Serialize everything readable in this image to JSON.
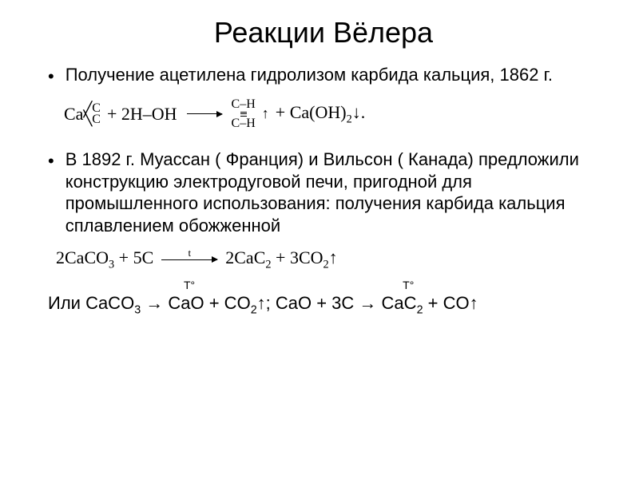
{
  "title": "Реакции Вёлера",
  "bullet1": "Получение ацетилена гидролизом карбида кальция, 1862 г.",
  "eq1": {
    "ca": "Ca",
    "C": "C",
    "plus": " + 2H–OH",
    "CH": "C–H",
    "up": "↑",
    "tail": " + Ca(OH)",
    "tail_sub": "2",
    "down": "↓."
  },
  "bullet2": "В 1892 г. Муассан ( Франция) и Вильсон ( Канада) предложили конструкцию электродуговой печи, пригодной для промышленного использования: получения карбида кальция сплавлением обожженной",
  "eq2": {
    "lhs_a": "2CaCO",
    "lhs_a_sub": "3",
    "lhs_b": " + 5C",
    "over": "t",
    "rhs_a": "2CaC",
    "rhs_a_sub": "2",
    "rhs_b": " + 3CO",
    "rhs_b_sub": "2",
    "up": "↑"
  },
  "t_label": "Т°",
  "final": {
    "prefix": "Или ",
    "p1a": "CaCO",
    "p1a_sub": "3",
    "arrow": " → ",
    "p1b": "CaO + CO",
    "p1b_sub": "2",
    "up": "↑",
    "sep": ";   ",
    "p2a": "CaO + 3C",
    "p2b": "CaC",
    "p2b_sub": "2",
    "p2c": " + CO"
  },
  "colors": {
    "bg": "#ffffff",
    "text": "#000000"
  }
}
